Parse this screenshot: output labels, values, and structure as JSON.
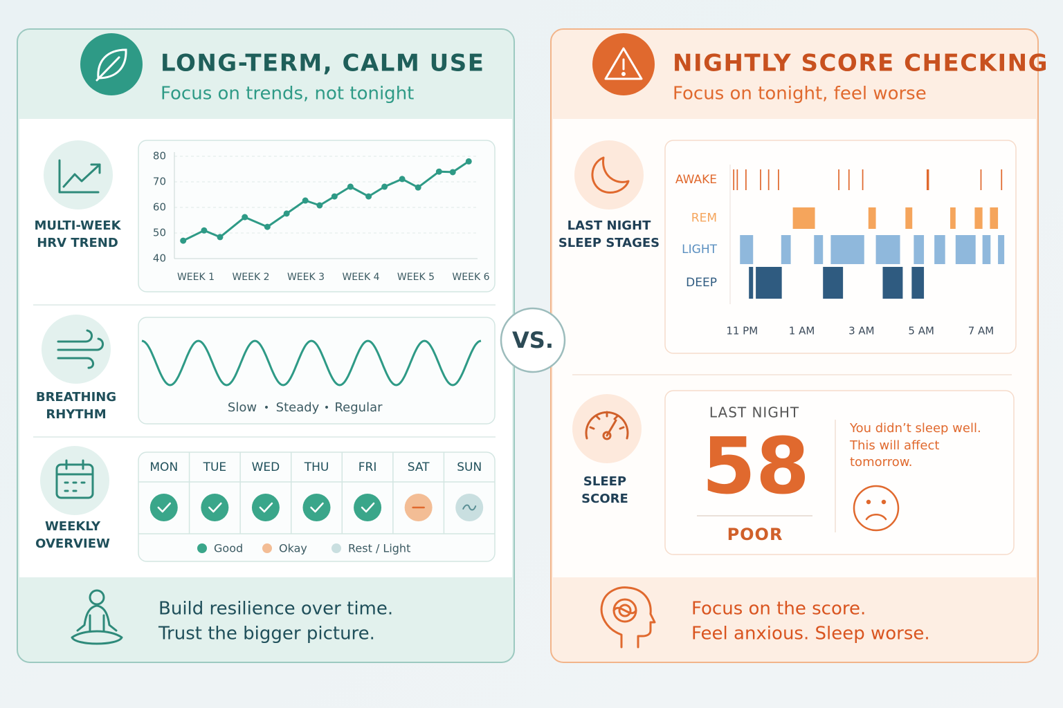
{
  "left": {
    "title": "LONG-TERM, CALM USE",
    "subtitle": "Focus on trends, not tonight",
    "hrv_label": [
      "MULTI-WEEK",
      "HRV TREND"
    ],
    "breathing": {
      "label": [
        "BREATHING",
        "RHYTHM"
      ],
      "caption": [
        "Slow",
        "•",
        "Steady",
        "•",
        "Regular"
      ]
    },
    "weekly": {
      "label": [
        "WEEKLY",
        "OVERVIEW"
      ],
      "legend": [
        {
          "label": "Good",
          "color": "#3aa68a"
        },
        {
          "label": "Okay",
          "color": "#f3bd95"
        },
        {
          "label": "Rest / Light",
          "color": "#c9dfe0"
        }
      ],
      "days": [
        {
          "label": "MON",
          "status": 0
        },
        {
          "label": "TUE",
          "status": 0
        },
        {
          "label": "WED",
          "status": 0
        },
        {
          "label": "THU",
          "status": 0
        },
        {
          "label": "FRI",
          "status": 0
        },
        {
          "label": "SAT",
          "status": 1
        },
        {
          "label": "SUN",
          "status": 2
        }
      ]
    },
    "footer": [
      "Build resilience over time.",
      "Trust the bigger picture."
    ]
  },
  "vs": "VS.",
  "right": {
    "title": "NIGHTLY SCORE CHECKING",
    "subtitle": "Focus on tonight, feel worse",
    "stages_label": [
      "LAST NIGHT",
      "SLEEP STAGES"
    ],
    "score": {
      "label": [
        "SLEEP",
        "SCORE"
      ],
      "heading": "LAST NIGHT",
      "value": "58",
      "rating": "POOR",
      "message": [
        "You didn’t sleep well.",
        "This will affect",
        "tomorrow."
      ]
    },
    "footer": [
      "Focus on the score.",
      "Feel anxious. Sleep worse."
    ]
  },
  "chart_data": [
    {
      "type": "line",
      "x": [
        0.77,
        1.15,
        1.44,
        1.89,
        2.3,
        2.65,
        2.99,
        3.25,
        3.52,
        3.81,
        4.14,
        4.43,
        4.75,
        5.04,
        5.42,
        5.67,
        5.96
      ],
      "values": [
        47,
        51,
        48.4,
        56.2,
        52.4,
        57.6,
        62.7,
        60.8,
        64.3,
        68.1,
        64.3,
        68.1,
        71.1,
        67.8,
        74,
        73.8,
        78
      ],
      "color": "#2e9a86",
      "xlim": [
        0.61,
        6.12
      ],
      "xticks": [
        {
          "value": 1,
          "label": "WEEK 1"
        },
        {
          "value": 2,
          "label": "WEEK 2"
        },
        {
          "value": 3,
          "label": "WEEK 3"
        },
        {
          "value": 4,
          "label": "WEEK 4"
        },
        {
          "value": 5,
          "label": "WEEK 5"
        },
        {
          "value": 6,
          "label": "WEEK 6"
        }
      ],
      "ylim": [
        40,
        80
      ],
      "yticks": [
        40,
        50,
        60,
        70,
        80
      ],
      "grid": true
    },
    {
      "type": "timeline",
      "categories": [
        "AWAKE",
        "REM",
        "LIGHT",
        "DEEP"
      ],
      "colors": [
        "#e0692e",
        "#f5a55c",
        "#8fb8dc",
        "#2f5b80"
      ],
      "xlim": [
        22.6,
        31.8
      ],
      "xticks": [
        {
          "value": 23,
          "label": "11 PM"
        },
        {
          "value": 25,
          "label": "1 AM"
        },
        {
          "value": 27,
          "label": "3 AM"
        },
        {
          "value": 29,
          "label": "5 AM"
        },
        {
          "value": 31,
          "label": "7 AM"
        }
      ],
      "segments": [
        {
          "stage": 0,
          "start": 22.7,
          "end": 22.74
        },
        {
          "stage": 0,
          "start": 22.82,
          "end": 22.86
        },
        {
          "stage": 0,
          "start": 23.11,
          "end": 23.15
        },
        {
          "stage": 0,
          "start": 23.6,
          "end": 23.64
        },
        {
          "stage": 0,
          "start": 23.87,
          "end": 23.91
        },
        {
          "stage": 0,
          "start": 24.2,
          "end": 24.24
        },
        {
          "stage": 0,
          "start": 26.22,
          "end": 26.26
        },
        {
          "stage": 0,
          "start": 26.56,
          "end": 26.6
        },
        {
          "stage": 0,
          "start": 27.02,
          "end": 27.06
        },
        {
          "stage": 0,
          "start": 29.18,
          "end": 29.26
        },
        {
          "stage": 0,
          "start": 30.98,
          "end": 31.02
        },
        {
          "stage": 0,
          "start": 31.67,
          "end": 31.71
        },
        {
          "stage": 1,
          "start": 24.7,
          "end": 25.44
        },
        {
          "stage": 1,
          "start": 27.23,
          "end": 27.48
        },
        {
          "stage": 1,
          "start": 28.47,
          "end": 28.7
        },
        {
          "stage": 1,
          "start": 29.97,
          "end": 30.15
        },
        {
          "stage": 1,
          "start": 30.79,
          "end": 31.05
        },
        {
          "stage": 1,
          "start": 31.3,
          "end": 31.57
        },
        {
          "stage": 2,
          "start": 22.93,
          "end": 23.37
        },
        {
          "stage": 2,
          "start": 24.31,
          "end": 24.63
        },
        {
          "stage": 2,
          "start": 25.41,
          "end": 25.71
        },
        {
          "stage": 2,
          "start": 25.97,
          "end": 27.09
        },
        {
          "stage": 2,
          "start": 27.48,
          "end": 28.29
        },
        {
          "stage": 2,
          "start": 28.75,
          "end": 29.09
        },
        {
          "stage": 2,
          "start": 29.44,
          "end": 29.8
        },
        {
          "stage": 2,
          "start": 30.15,
          "end": 30.82
        },
        {
          "stage": 2,
          "start": 31.05,
          "end": 31.32
        },
        {
          "stage": 2,
          "start": 31.57,
          "end": 31.78
        },
        {
          "stage": 3,
          "start": 23.23,
          "end": 23.37
        },
        {
          "stage": 3,
          "start": 23.46,
          "end": 24.33
        },
        {
          "stage": 3,
          "start": 25.71,
          "end": 26.38
        },
        {
          "stage": 3,
          "start": 27.71,
          "end": 28.38
        },
        {
          "stage": 3,
          "start": 28.68,
          "end": 29.09
        }
      ]
    }
  ]
}
